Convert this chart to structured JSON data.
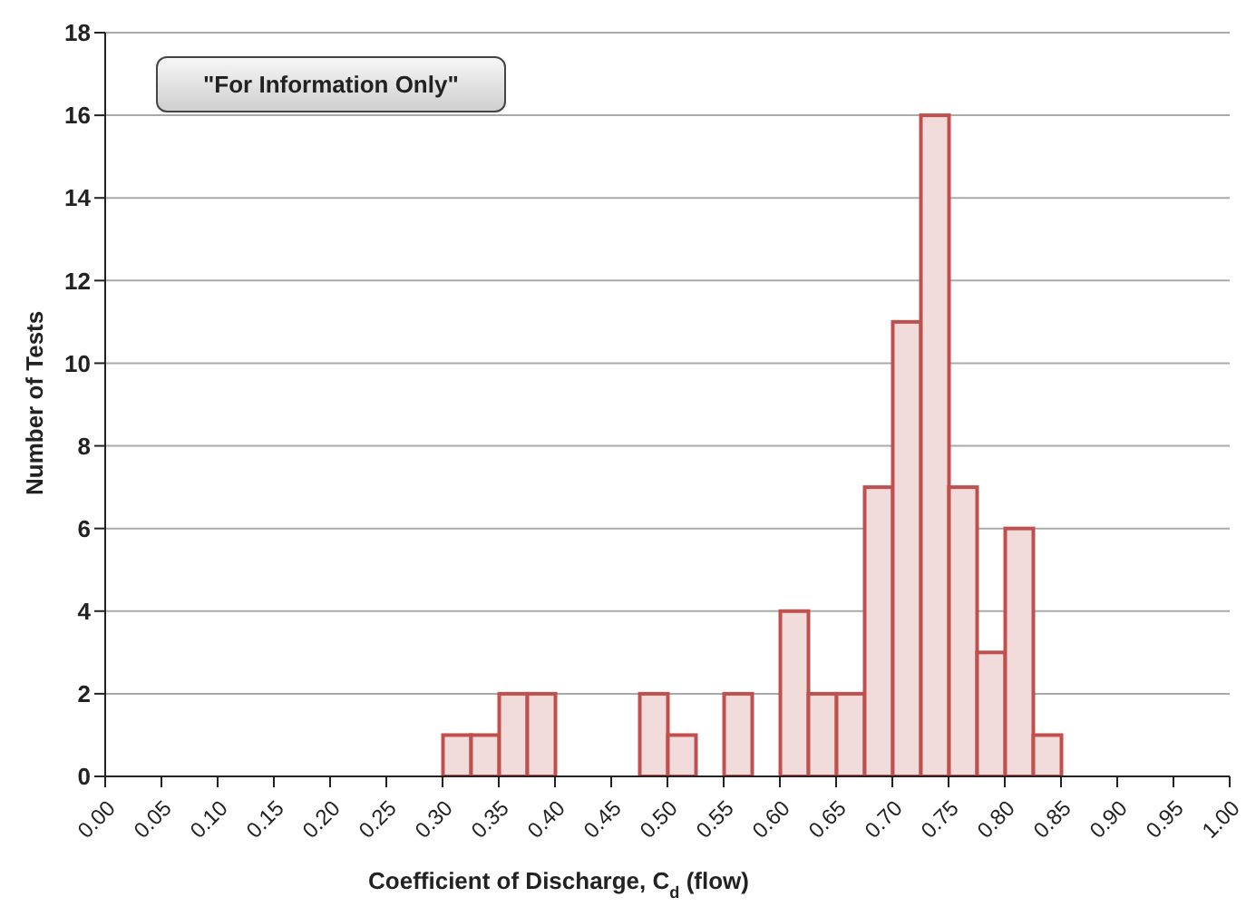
{
  "chart_data": {
    "type": "histogram",
    "xlabel": "Coefficient of Discharge, C$_{d}$ (flow)",
    "ylabel": "Number of Tests",
    "annotations": [
      "\"For Information Only\""
    ],
    "bins": [
      0.3,
      0.325,
      0.35,
      0.375,
      0.4,
      0.425,
      0.45,
      0.475,
      0.5,
      0.525,
      0.55,
      0.575,
      0.6,
      0.625,
      0.65,
      0.675,
      0.7,
      0.725,
      0.75,
      0.775,
      0.8,
      0.825,
      0.85
    ],
    "values": [
      1,
      1,
      2,
      2,
      0,
      0,
      0,
      2,
      1,
      0,
      2,
      0,
      4,
      2,
      2,
      7,
      11,
      16,
      7,
      3,
      6,
      1
    ],
    "color": "#f2dcdb",
    "xlim": [
      0,
      1
    ],
    "xticks": [
      {
        "value": 0,
        "label": "0.00"
      },
      {
        "value": 0.05,
        "label": "0.05"
      },
      {
        "value": 0.1,
        "label": "0.10"
      },
      {
        "value": 0.15,
        "label": "0.15"
      },
      {
        "value": 0.2,
        "label": "0.20"
      },
      {
        "value": 0.25,
        "label": "0.25"
      },
      {
        "value": 0.3,
        "label": "0.30"
      },
      {
        "value": 0.35,
        "label": "0.35"
      },
      {
        "value": 0.4,
        "label": "0.40"
      },
      {
        "value": 0.45,
        "label": "0.45"
      },
      {
        "value": 0.5,
        "label": "0.50"
      },
      {
        "value": 0.55,
        "label": "0.55"
      },
      {
        "value": 0.6,
        "label": "0.60"
      },
      {
        "value": 0.65,
        "label": "0.65"
      },
      {
        "value": 0.7,
        "label": "0.70"
      },
      {
        "value": 0.75,
        "label": "0.75"
      },
      {
        "value": 0.8,
        "label": "0.80"
      },
      {
        "value": 0.85,
        "label": "0.85"
      },
      {
        "value": 0.9,
        "label": "0.90"
      },
      {
        "value": 0.95,
        "label": "0.95"
      },
      {
        "value": 1,
        "label": "1.00"
      }
    ],
    "ylim": [
      0,
      18
    ],
    "yticks": [
      0,
      2,
      4,
      6,
      8,
      10,
      12,
      14,
      16,
      18
    ],
    "grid": "y"
  }
}
